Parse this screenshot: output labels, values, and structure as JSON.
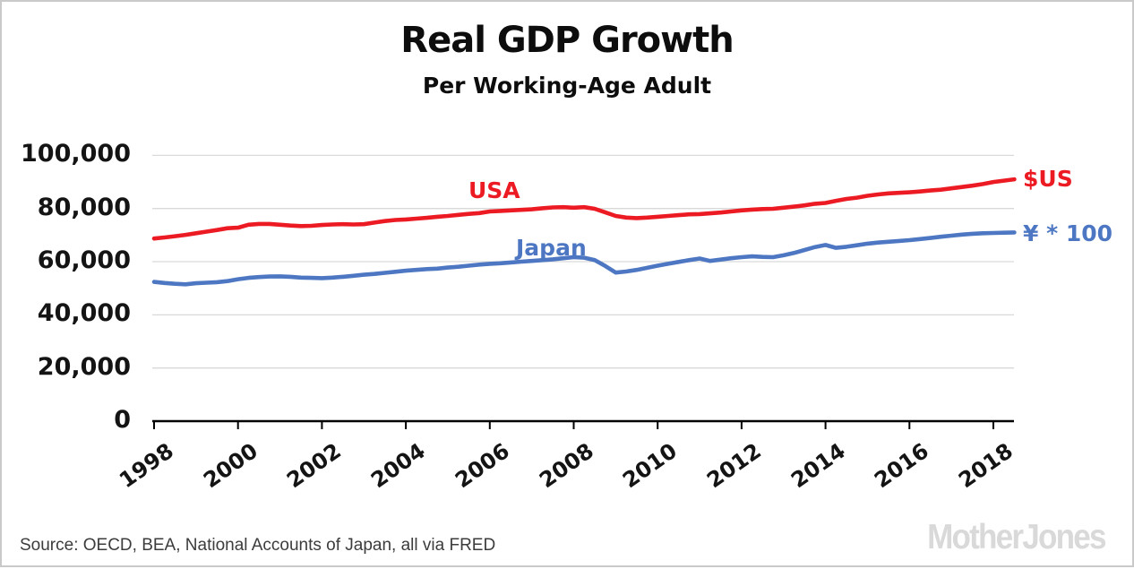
{
  "header": {
    "title": "Real GDP Growth",
    "subtitle": "Per Working-Age Adult"
  },
  "chart_data": {
    "type": "line",
    "title": "Real GDP Growth",
    "subtitle": "Per Working-Age Adult",
    "x_start": 1998,
    "x_step": 0.25,
    "xlim": [
      1998,
      2018.5
    ],
    "ylim": [
      0,
      100000
    ],
    "grid": true,
    "grid_color": "#d9d9d9",
    "axis_color": "#000000",
    "legend_position": "inline-labels",
    "x_tick_labels": [
      "1998",
      "2000",
      "2002",
      "2004",
      "2006",
      "2008",
      "2010",
      "2012",
      "2014",
      "2016",
      "2018"
    ],
    "y_ticks": [
      {
        "value": 0,
        "label": "0"
      },
      {
        "value": 20000,
        "label": "20,000"
      },
      {
        "value": 40000,
        "label": "40,000"
      },
      {
        "value": 60000,
        "label": "60,000"
      },
      {
        "value": 80000,
        "label": "80,000"
      },
      {
        "value": 100000,
        "label": "100,000"
      }
    ],
    "series": [
      {
        "id": "usa",
        "name": "USA",
        "inline_label": "USA",
        "end_label": "$US",
        "color": "#ec1b23",
        "values": [
          68700,
          69100,
          69600,
          70100,
          70700,
          71300,
          71900,
          72600,
          72800,
          73900,
          74200,
          74200,
          73900,
          73600,
          73400,
          73500,
          73800,
          74000,
          74100,
          74000,
          74100,
          74700,
          75300,
          75700,
          75900,
          76200,
          76500,
          76900,
          77200,
          77600,
          78000,
          78300,
          78900,
          79100,
          79300,
          79500,
          79700,
          80100,
          80400,
          80500,
          80300,
          80500,
          79900,
          78600,
          77200,
          76600,
          76400,
          76600,
          76900,
          77200,
          77500,
          77800,
          77900,
          78200,
          78500,
          78900,
          79300,
          79600,
          79800,
          79900,
          80300,
          80700,
          81200,
          81800,
          82100,
          82900,
          83600,
          84100,
          84800,
          85300,
          85700,
          85900,
          86100,
          86400,
          86800,
          87100,
          87600,
          88100,
          88600,
          89200,
          90000,
          90500,
          91000
        ]
      },
      {
        "id": "japan",
        "name": "Japan",
        "inline_label": "Japan",
        "end_label": "¥ * 100",
        "color": "#4d77c2",
        "values": [
          52400,
          52000,
          51700,
          51500,
          51900,
          52100,
          52300,
          52700,
          53400,
          53900,
          54200,
          54400,
          54500,
          54300,
          54000,
          53900,
          53800,
          54000,
          54300,
          54700,
          55100,
          55400,
          55800,
          56200,
          56600,
          56900,
          57200,
          57400,
          57800,
          58100,
          58500,
          58900,
          59200,
          59400,
          59700,
          60000,
          60300,
          60600,
          60900,
          61300,
          61700,
          61500,
          60600,
          58400,
          55900,
          56300,
          56900,
          57700,
          58500,
          59200,
          59900,
          60600,
          61200,
          60300,
          60800,
          61300,
          61700,
          62000,
          61800,
          61700,
          62400,
          63300,
          64400,
          65500,
          66300,
          65200,
          65600,
          66200,
          66800,
          67200,
          67500,
          67800,
          68100,
          68500,
          68900,
          69400,
          69800,
          70200,
          70500,
          70700,
          70800,
          70900,
          71000
        ]
      }
    ]
  },
  "footer": {
    "source": "Source: OECD, BEA, National Accounts of Japan, all via FRED",
    "watermark": "MotherJones"
  }
}
